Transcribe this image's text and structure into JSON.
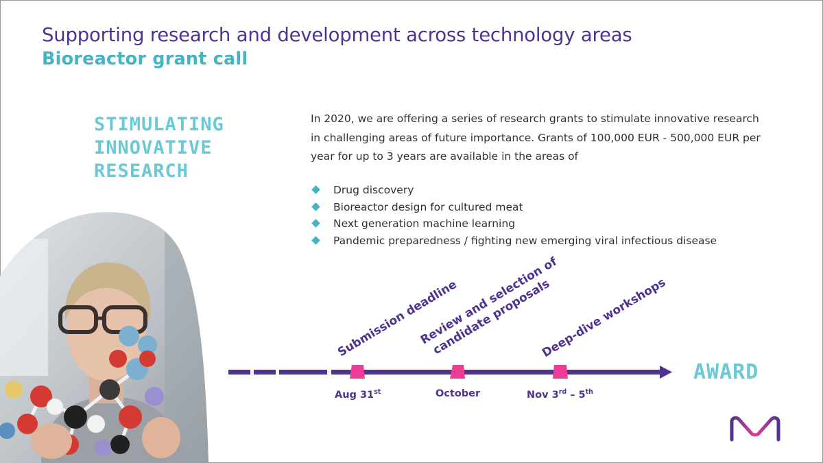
{
  "header": {
    "title": "Supporting research and development across technology areas",
    "subtitle": "Bioreactor grant call"
  },
  "stimulating": [
    "STIMULATING",
    "INNOVATIVE",
    "RESEARCH"
  ],
  "intro": "In 2020, we are offering a series of research grants to stimulate innovative research in challenging areas of future importance. Grants of 100,000 EUR - 500,000 EUR per year for up to 3 years are available in the areas of",
  "areas": [
    "Drug discovery",
    "Bioreactor design for cultured meat",
    "Next generation machine learning",
    "Pandemic preparedness / fighting new emerging viral infectious disease"
  ],
  "timeline": {
    "milestones": [
      {
        "lines": [
          "Submission deadline"
        ],
        "date": "Aug 31",
        "date_sup": "st"
      },
      {
        "lines": [
          "Review and selection of",
          "candidate proposals"
        ],
        "date": "October",
        "date_sup": ""
      },
      {
        "lines": [
          "Deep-dive workshops"
        ],
        "date": "Nov 3",
        "date_sup": "rd",
        "date_end": " – 5",
        "date_end_sup": "th"
      }
    ],
    "award": "AWARD"
  },
  "colors": {
    "purple": "#503291",
    "teal": "#45b5c4",
    "light_teal": "#6ac9d4",
    "pink": "#eb3c96"
  }
}
